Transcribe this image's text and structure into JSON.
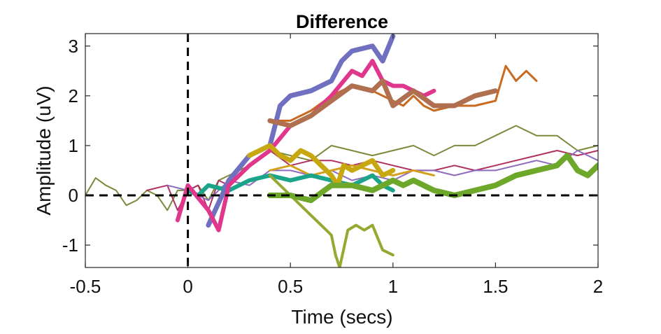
{
  "chart_data": {
    "type": "line",
    "title": "Difference",
    "xlabel": "Time (secs)",
    "ylabel": "Amplitude (uV)",
    "xlim": [
      -0.5,
      2.0
    ],
    "ylim": [
      -1.45,
      3.25
    ],
    "xticks": [
      -0.5,
      0,
      0.5,
      1,
      1.5,
      2
    ],
    "xtick_labels": [
      "-0.5",
      "0",
      "0.5",
      "1",
      "1.5",
      "2"
    ],
    "yticks": [
      -1,
      0,
      1,
      2,
      3
    ],
    "ytick_labels": [
      "-1",
      "0",
      "1",
      "2",
      "3"
    ],
    "grid": false,
    "legend": "none",
    "reference_lines": [
      {
        "orientation": "horizontal",
        "value": 0,
        "style": "dashed",
        "color": "#000000"
      },
      {
        "orientation": "vertical",
        "value": 0,
        "style": "dashed",
        "color": "#000000"
      }
    ],
    "series": [
      {
        "color": "#7a8a3a",
        "width": 2,
        "x": [
          -0.5,
          -0.45,
          -0.4,
          -0.35,
          -0.3,
          -0.25,
          -0.2,
          -0.15,
          -0.1,
          -0.05,
          0,
          0.05,
          0.1,
          0.15,
          0.2,
          0.3,
          0.4,
          0.5,
          0.6,
          0.7,
          0.8,
          0.9,
          1.0,
          1.1,
          1.2,
          1.3,
          1.4,
          1.5,
          1.6,
          1.7,
          1.8,
          1.9,
          2.0
        ],
        "y": [
          0,
          0.35,
          0.2,
          0.1,
          -0.2,
          -0.1,
          0.1,
          0.0,
          -0.3,
          0.1,
          0.1,
          0.2,
          -0.1,
          0.3,
          0.4,
          0.6,
          0.9,
          0.8,
          0.7,
          1.0,
          0.9,
          0.8,
          0.9,
          1.0,
          0.8,
          1.0,
          1.0,
          1.2,
          1.4,
          1.2,
          1.2,
          0.9,
          1.0
        ]
      },
      {
        "color": "#b03060",
        "width": 2,
        "x": [
          -0.2,
          -0.1,
          -0.05,
          0,
          0.05,
          0.1,
          0.15,
          0.2,
          0.3,
          0.4,
          0.5,
          0.6,
          0.7,
          0.8,
          0.9,
          1.0,
          1.1,
          1.2,
          1.3,
          1.4,
          1.5,
          1.6,
          1.7,
          1.8,
          1.9,
          2.0
        ],
        "y": [
          0.1,
          0.2,
          -0.3,
          0.1,
          0.2,
          -0.3,
          0.3,
          0.2,
          0.6,
          0.9,
          0.6,
          0.7,
          0.7,
          0.6,
          0.7,
          0.6,
          0.5,
          0.5,
          0.6,
          0.5,
          0.6,
          0.7,
          0.8,
          0.9,
          0.8,
          0.9
        ]
      },
      {
        "color": "#8e6bbf",
        "width": 2,
        "x": [
          -0.1,
          0,
          0.1,
          0.2,
          0.3,
          0.4,
          0.5,
          0.6,
          0.7,
          0.8,
          0.9,
          1.0,
          1.1,
          1.2,
          1.3,
          1.4,
          1.5,
          1.6,
          1.7,
          1.8,
          1.9,
          2.0
        ],
        "y": [
          0.2,
          0.1,
          -0.1,
          0.3,
          0.2,
          0.5,
          0.5,
          0.4,
          0.5,
          0.3,
          0.4,
          0.3,
          0.5,
          0.5,
          0.4,
          0.5,
          0.5,
          0.6,
          0.7,
          0.6,
          0.9,
          0.7
        ]
      },
      {
        "color": "#c86a20",
        "width": 3,
        "x": [
          0.4,
          0.5,
          0.6,
          0.7,
          0.8,
          0.9,
          1.0,
          1.05,
          1.1,
          1.15,
          1.2,
          1.3,
          1.4,
          1.5,
          1.55,
          1.6,
          1.65,
          1.7
        ],
        "y": [
          1.5,
          1.5,
          1.7,
          2.0,
          2.2,
          2.1,
          1.9,
          1.8,
          2.0,
          1.8,
          1.7,
          1.8,
          1.8,
          1.9,
          2.6,
          2.3,
          2.5,
          2.3
        ]
      },
      {
        "color": "#d4a020",
        "width": 3,
        "x": [
          0.4,
          0.5,
          0.6,
          0.7,
          0.8,
          0.9,
          1.0,
          1.1,
          1.2
        ],
        "y": [
          0.5,
          0.6,
          0.4,
          0.5,
          0.6,
          0.5,
          0.4,
          0.5,
          0.4
        ]
      },
      {
        "color": "#1aa58a",
        "width": 6,
        "x": [
          0.0,
          0.05,
          0.1,
          0.2,
          0.3,
          0.4,
          0.5,
          0.6,
          0.7,
          0.8,
          0.9,
          0.95,
          1.0
        ],
        "y": [
          0.1,
          0.0,
          0.2,
          0.1,
          0.3,
          0.4,
          0.3,
          0.4,
          0.3,
          0.2,
          0.4,
          0.2,
          0.1
        ]
      },
      {
        "color": "#7070c0",
        "width": 7,
        "x": [
          0.1,
          0.2,
          0.3,
          0.4,
          0.45,
          0.5,
          0.6,
          0.7,
          0.75,
          0.8,
          0.9,
          0.95,
          1.0
        ],
        "y": [
          -0.6,
          0.3,
          0.8,
          1.0,
          1.8,
          2.0,
          2.1,
          2.3,
          2.7,
          2.9,
          3.0,
          2.7,
          3.2
        ]
      },
      {
        "color": "#e0368c",
        "width": 6,
        "x": [
          -0.05,
          0,
          0.1,
          0.15,
          0.2,
          0.3,
          0.4,
          0.5,
          0.6,
          0.7,
          0.8,
          0.85,
          0.9,
          0.95,
          1.0,
          1.05,
          1.1,
          1.15,
          1.2
        ],
        "y": [
          -0.5,
          0.2,
          -0.3,
          -0.7,
          0.2,
          0.6,
          0.9,
          1.4,
          1.6,
          2.0,
          2.5,
          2.4,
          2.7,
          2.3,
          2.2,
          2.2,
          2.1,
          2.0,
          2.1
        ]
      },
      {
        "color": "#b07050",
        "width": 7,
        "x": [
          0.4,
          0.5,
          0.6,
          0.7,
          0.8,
          0.9,
          0.95,
          1.0,
          1.1,
          1.2,
          1.3,
          1.4,
          1.5
        ],
        "y": [
          1.5,
          1.4,
          1.6,
          1.9,
          2.2,
          2.1,
          2.3,
          1.8,
          2.1,
          1.8,
          1.8,
          2.0,
          2.1
        ]
      },
      {
        "color": "#95a832",
        "width": 4,
        "x": [
          0.4,
          0.5,
          0.6,
          0.65,
          0.7,
          0.72,
          0.74,
          0.78,
          0.82,
          0.86,
          0.9,
          0.95,
          1.0
        ],
        "y": [
          0.4,
          0.0,
          -0.4,
          -0.6,
          -0.8,
          -1.2,
          -1.45,
          -0.7,
          -0.6,
          -0.7,
          -0.6,
          -1.1,
          -1.2
        ]
      },
      {
        "color": "#c8a810",
        "width": 7,
        "x": [
          0.3,
          0.35,
          0.4,
          0.45,
          0.5,
          0.55,
          0.6,
          0.65,
          0.7,
          0.73,
          0.76,
          0.8,
          0.85,
          0.9,
          0.95,
          1.0
        ],
        "y": [
          0.8,
          0.9,
          1.0,
          0.8,
          0.7,
          0.9,
          0.8,
          0.6,
          0.4,
          0.2,
          0.6,
          0.5,
          0.6,
          0.7,
          0.4,
          0.5
        ]
      },
      {
        "color": "#6ea82a",
        "width": 8,
        "x": [
          0.4,
          0.5,
          0.6,
          0.7,
          0.8,
          0.9,
          1.0,
          1.05,
          1.1,
          1.2,
          1.3,
          1.4,
          1.5,
          1.6,
          1.7,
          1.8,
          1.85,
          1.9,
          1.95,
          2.0
        ],
        "y": [
          0.0,
          0.0,
          -0.1,
          0.2,
          0.2,
          0.1,
          0.3,
          0.2,
          0.3,
          0.1,
          0.0,
          0.1,
          0.2,
          0.4,
          0.5,
          0.6,
          0.8,
          0.5,
          0.4,
          0.6
        ]
      }
    ]
  }
}
